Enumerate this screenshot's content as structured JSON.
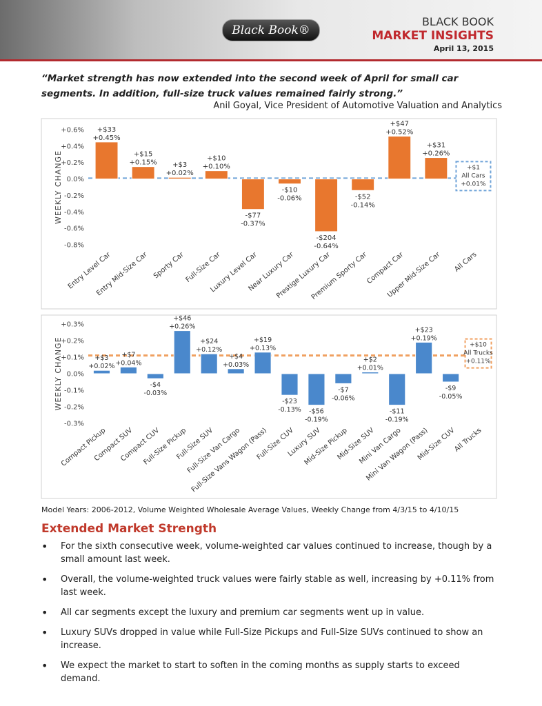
{
  "header": {
    "logo": "Black Book®",
    "brand": "BLACK BOOK",
    "title": "MARKET INSIGHTS",
    "date": "April 13, 2015"
  },
  "quote": {
    "text": "“Market strength has now extended into the second week of April for small car segments. In addition, full-size truck values remained fairly strong.”",
    "attribution": "Anil Goyal, Vice President of Automotive Valuation and Analytics"
  },
  "chart_data": [
    {
      "type": "bar",
      "ylabel": "WEEKLY CHANGE",
      "color": "#e8772e",
      "reference_color": "#6fa3d8",
      "grid": false,
      "categories": [
        "Entry Level Car",
        "Entry Mid-Size Car",
        "Sporty Car",
        "Full-Size Car",
        "Luxury Level Car",
        "Near Luxury Car",
        "Prestige Luxury Car",
        "Premium Sporty Car",
        "Compact Car",
        "Upper Mid-Size Car",
        "All Cars"
      ],
      "values": [
        0.45,
        0.15,
        0.02,
        0.1,
        -0.37,
        -0.06,
        -0.64,
        -0.14,
        0.52,
        0.26,
        0.01
      ],
      "value_labels": [
        "+0.45%",
        "+0.15%",
        "+0.02%",
        "+0.10%",
        "-0.37%",
        "-0.06%",
        "-0.64%",
        "-0.14%",
        "+0.52%",
        "+0.26%",
        "+0.01%"
      ],
      "dollar_labels": [
        "+$33",
        "+$15",
        "+$3",
        "+$10",
        "-$77",
        "-$10",
        "-$204",
        "-$52",
        "+$47",
        "+$31",
        "+$1"
      ],
      "ylim": [
        -0.8,
        0.6
      ],
      "yticks": [
        {
          "value": -0.8,
          "label": "-0.8%"
        },
        {
          "value": -0.6,
          "label": "-0.6%"
        },
        {
          "value": -0.4,
          "label": "-0.4%"
        },
        {
          "value": -0.2,
          "label": "-0.2%"
        },
        {
          "value": 0,
          "label": "0.0%"
        },
        {
          "value": 0.2,
          "label": "+0.2%"
        },
        {
          "value": 0.4,
          "label": "+0.4%"
        },
        {
          "value": 0.6,
          "label": "+0.6%"
        }
      ]
    },
    {
      "type": "bar",
      "ylabel": "WEEKLY CHANGE",
      "color": "#4a88cc",
      "reference_color": "#f0a060",
      "grid": false,
      "categories": [
        "Compact Pickup",
        "Compact SUV",
        "Compact CUV",
        "Full-Size Pickup",
        "Full-Size SUV",
        "Full-Size Van Cargo",
        "Full-Size Vans Wagon (Pass)",
        "Full-Size CUV",
        "Luxury SUV",
        "Mid-Size Pickup",
        "Mid-Size SUV",
        "Mini Van Cargo",
        "Mini Van Wagon (Pass)",
        "Mid-Size CUV",
        "All Trucks"
      ],
      "values": [
        0.02,
        0.04,
        -0.03,
        0.26,
        0.12,
        0.03,
        0.13,
        -0.13,
        -0.19,
        -0.06,
        0.01,
        -0.19,
        0.19,
        -0.05,
        0.11
      ],
      "value_labels": [
        "+0.02%",
        "+0.04%",
        "-0.03%",
        "+0.26%",
        "+0.12%",
        "+0.03%",
        "+0.13%",
        "-0.13%",
        "-0.19%",
        "-0.06%",
        "+0.01%",
        "-0.19%",
        "+0.19%",
        "-0.05%",
        "+0.11%"
      ],
      "dollar_labels": [
        "+$3",
        "+$7",
        "-$4",
        "+$46",
        "+$24",
        "+$4",
        "+$19",
        "-$23",
        "-$56",
        "-$7",
        "+$2",
        "-$11",
        "+$23",
        "-$9",
        "+$10"
      ],
      "ylim": [
        -0.3,
        0.3
      ],
      "yticks": [
        {
          "value": -0.3,
          "label": "-0.3%"
        },
        {
          "value": -0.2,
          "label": "-0.2%"
        },
        {
          "value": -0.1,
          "label": "-0.1%"
        },
        {
          "value": 0,
          "label": "0.0%"
        },
        {
          "value": 0.1,
          "label": "+0.1%"
        },
        {
          "value": 0.2,
          "label": "+0.2%"
        },
        {
          "value": 0.3,
          "label": "+0.3%"
        }
      ]
    }
  ],
  "footnote": "Model Years: 2006-2012, Volume Weighted Wholesale Average Values, Weekly Change from 4/3/15 to 4/10/15",
  "section": {
    "heading": "Extended Market Strength",
    "bullets": [
      "For the sixth consecutive week, volume-weighted car values continued to increase, though by a small amount last week.",
      "Overall, the volume-weighted truck values were fairly stable as well, increasing by +0.11% from last week.",
      "All car segments except the luxury and premium car segments went up in value.",
      "Luxury SUVs dropped in value while Full-Size Pickups and Full-Size SUVs continued to show an increase.",
      "We expect the market to start to soften in the coming months as supply starts to exceed demand."
    ]
  }
}
